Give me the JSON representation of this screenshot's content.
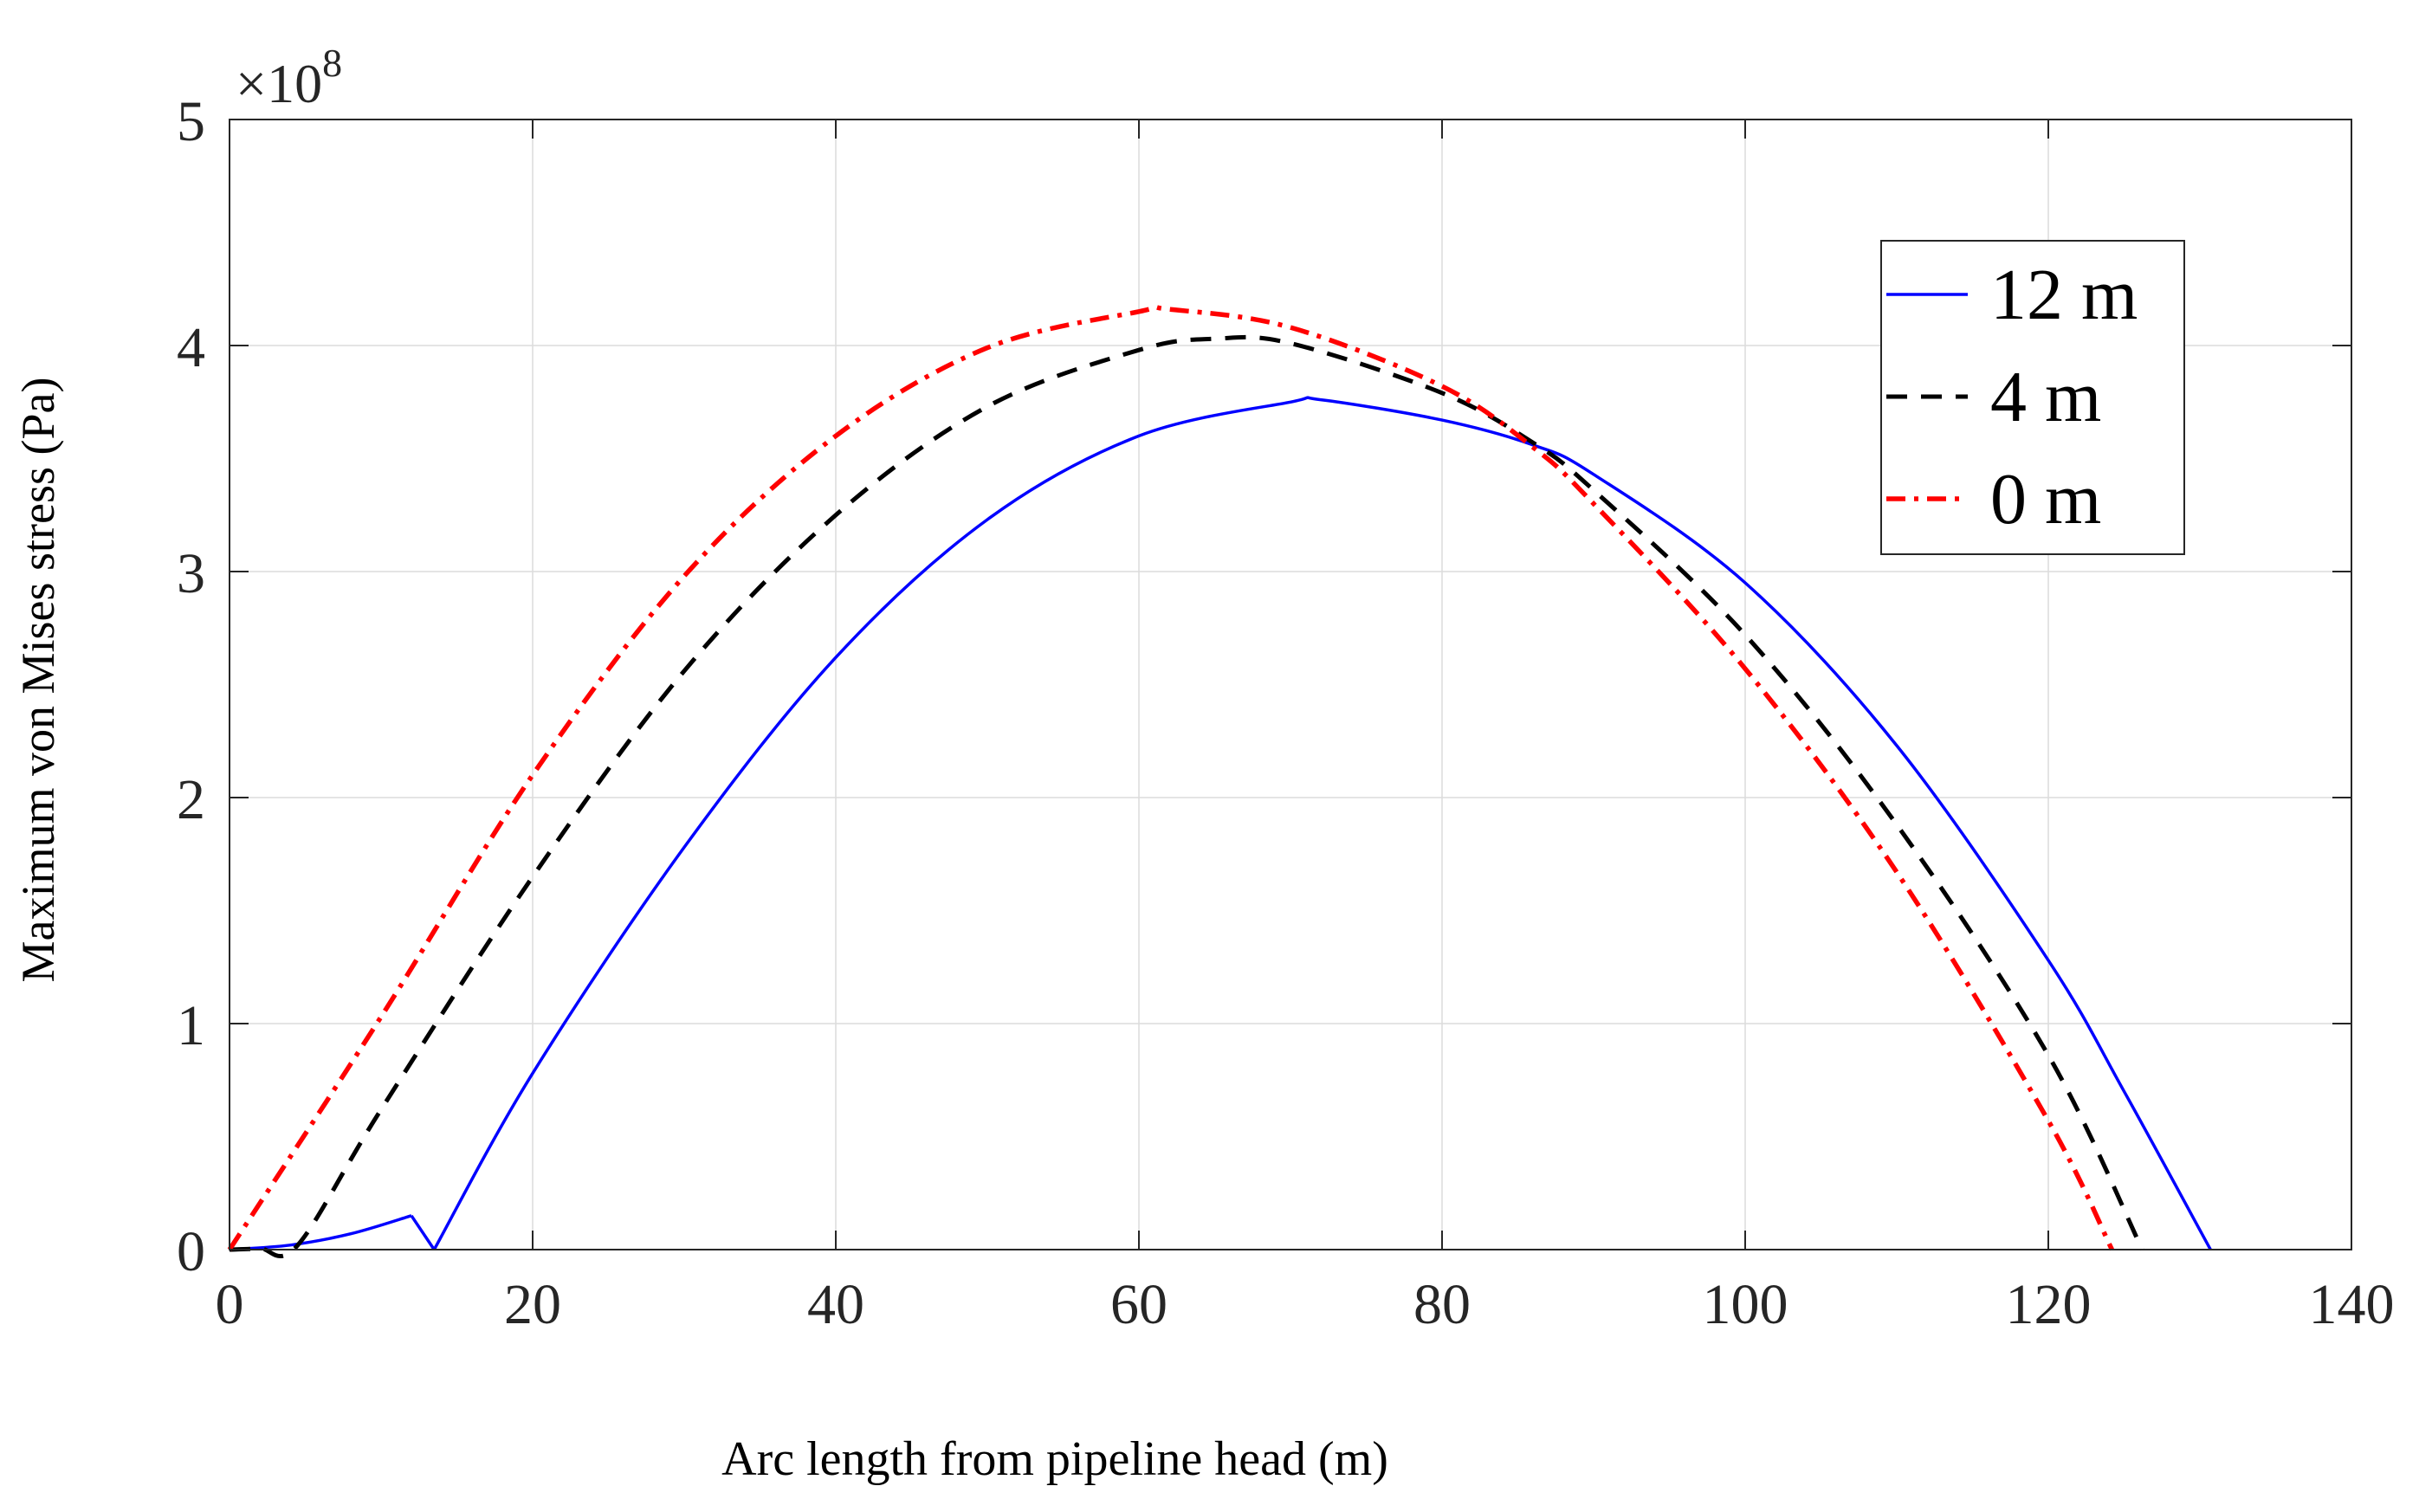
{
  "chart_data": {
    "type": "line",
    "title": "",
    "xlabel": "Arc length from pipeline head (m)",
    "ylabel": "Maximum von Mises stress (Pa)",
    "xlim": [
      0,
      140
    ],
    "ylim": [
      0,
      5
    ],
    "y_scale_label": "×10",
    "y_scale_exponent": "8",
    "y_multiplier": 100000000,
    "grid": true,
    "legend_position": "top-right",
    "x_ticks": [
      "0",
      "20",
      "40",
      "60",
      "80",
      "100",
      "120",
      "140"
    ],
    "y_ticks": [
      "0",
      "1",
      "2",
      "3",
      "4",
      "5"
    ],
    "series": [
      {
        "name": "12 m",
        "color": "#0000ff",
        "style": "solid",
        "x": [
          0,
          4,
          8,
          12,
          13.5,
          20,
          30,
          40,
          50,
          60,
          70,
          72,
          80,
          86,
          90,
          100,
          110,
          120,
          125,
          130.7
        ],
        "y": [
          0,
          0.02,
          0.07,
          0.15,
          0.0,
          0.78,
          1.78,
          2.62,
          3.23,
          3.6,
          3.75,
          3.76,
          3.67,
          3.56,
          3.43,
          2.95,
          2.23,
          1.28,
          0.7,
          0.0
        ]
      },
      {
        "name": "4 m",
        "color": "#000000",
        "style": "dashed",
        "x": [
          0,
          2,
          4.5,
          10,
          20,
          30,
          40,
          50,
          60,
          65,
          70,
          80,
          86,
          90,
          100,
          110,
          120,
          126.2
        ],
        "y": [
          0,
          0.005,
          0.02,
          0.62,
          1.65,
          2.56,
          3.25,
          3.73,
          3.98,
          4.03,
          4.01,
          3.79,
          3.57,
          3.36,
          2.72,
          1.88,
          0.86,
          0.0
        ]
      },
      {
        "name": "0 m",
        "color": "#ff0000",
        "style": "dash-dot",
        "x": [
          0,
          10,
          20,
          30,
          40,
          50,
          60,
          62,
          70,
          80,
          86,
          90,
          100,
          110,
          120,
          124.2
        ],
        "y": [
          0,
          1.03,
          2.1,
          2.98,
          3.6,
          3.99,
          4.15,
          4.16,
          4.08,
          3.82,
          3.55,
          3.3,
          2.57,
          1.67,
          0.57,
          0.0
        ]
      }
    ]
  }
}
